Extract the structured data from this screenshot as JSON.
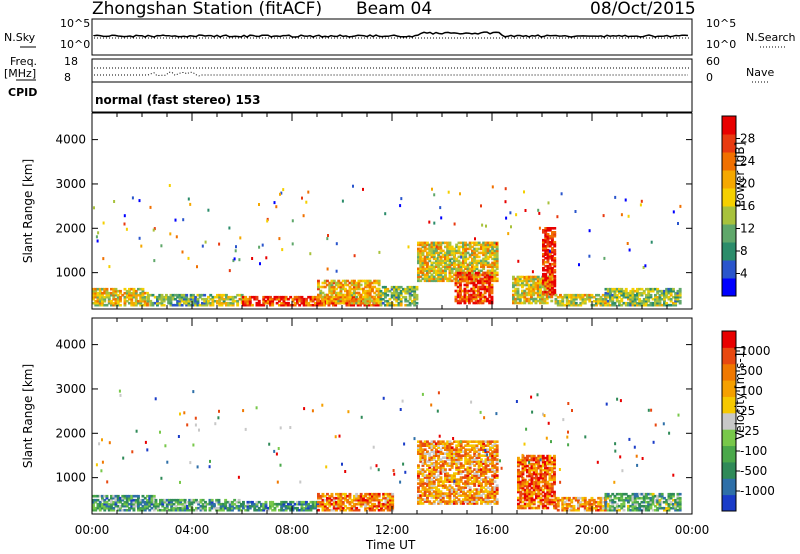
{
  "header": {
    "station": "Zhongshan Station (fitACF)",
    "beam": "Beam 04",
    "date": "08/Oct/2015"
  },
  "status_panel": {
    "nsky_label": "N.Sky",
    "nsearch_label": "N.Search",
    "nsky_ticks": [
      "10^5",
      "10^0"
    ],
    "nsearch_ticks": [
      "10^5",
      "10^0"
    ],
    "freq_label_line1": "Freq.",
    "freq_label_line2": "[MHz]",
    "freq_ticks": [
      "18",
      "8"
    ],
    "nave_label": "Nave",
    "nave_ticks": [
      "60",
      "0"
    ],
    "cpid_label": "CPID",
    "cpid_value": "normal (fast stereo) 153"
  },
  "chart_data": [
    {
      "type": "heatmap",
      "name": "power",
      "ylabel": "Slant Range [km]",
      "xlabel": "Time UT",
      "xlim": [
        0,
        24
      ],
      "ylim": [
        180,
        4600
      ],
      "y_ticks": [
        1000,
        2000,
        3000,
        4000
      ],
      "x_tick_labels": [
        "00:00",
        "04:00",
        "08:00",
        "12:00",
        "16:00",
        "20:00",
        "00:00"
      ],
      "colorbar": {
        "label": "Power [dB]",
        "ticks": [
          "4",
          "8",
          "12",
          "16",
          "20",
          "24",
          "28"
        ],
        "colors": [
          "#0000ff",
          "#2a55cc",
          "#2b8c6a",
          "#5fa76a",
          "#a8c23c",
          "#f5d000",
          "#f5a800",
          "#f07000",
          "#e83a10",
          "#e80000"
        ]
      },
      "regions": [
        {
          "t0": 0.0,
          "t1": 2.2,
          "r0": 250,
          "r1": 650,
          "v": 0.55
        },
        {
          "t0": 2.2,
          "t1": 4.6,
          "r0": 250,
          "r1": 500,
          "v": 0.35
        },
        {
          "t0": 4.6,
          "t1": 6.0,
          "r0": 250,
          "r1": 520,
          "v": 0.5
        },
        {
          "t0": 6.0,
          "t1": 11.5,
          "r0": 250,
          "r1": 450,
          "v": 0.85
        },
        {
          "t0": 9.0,
          "t1": 11.5,
          "r0": 300,
          "r1": 800,
          "v": 0.6
        },
        {
          "t0": 11.5,
          "t1": 13.0,
          "r0": 250,
          "r1": 700,
          "v": 0.4
        },
        {
          "t0": 13.0,
          "t1": 16.2,
          "r0": 800,
          "r1": 1700,
          "v": 0.55
        },
        {
          "t0": 14.5,
          "t1": 16.0,
          "r0": 300,
          "r1": 1000,
          "v": 0.85
        },
        {
          "t0": 16.8,
          "t1": 18.4,
          "r0": 300,
          "r1": 900,
          "v": 0.55
        },
        {
          "t0": 18.0,
          "t1": 18.5,
          "r0": 500,
          "r1": 2000,
          "v": 0.9
        },
        {
          "t0": 18.5,
          "t1": 20.5,
          "r0": 250,
          "r1": 500,
          "v": 0.5
        },
        {
          "t0": 20.5,
          "t1": 23.5,
          "r0": 250,
          "r1": 650,
          "v": 0.4
        }
      ]
    },
    {
      "type": "heatmap",
      "name": "velocity",
      "ylabel": "Slant Range [km]",
      "xlabel": "Time UT",
      "xlim": [
        0,
        24
      ],
      "ylim": [
        180,
        4600
      ],
      "y_ticks": [
        1000,
        2000,
        3000,
        4000
      ],
      "x_tick_labels": [
        "00:00",
        "04:00",
        "08:00",
        "12:00",
        "16:00",
        "20:00",
        "00:00"
      ],
      "colorbar": {
        "label": "Velocity [m s-1]",
        "ticks": [
          "1000",
          "500",
          "100",
          "25",
          "-25",
          "-100",
          "-500",
          "-1000"
        ],
        "colors": [
          "#1a3cc8",
          "#2e6fa8",
          "#2f8a58",
          "#4aa84a",
          "#78c84a",
          "#c8c8c8",
          "#f5c800",
          "#f5a000",
          "#f07800",
          "#e84810",
          "#e80000"
        ]
      },
      "regions": [
        {
          "t0": 0.0,
          "t1": 2.5,
          "r0": 250,
          "r1": 600,
          "v": 0.3
        },
        {
          "t0": 2.5,
          "t1": 6.0,
          "r0": 250,
          "r1": 500,
          "v": 0.3
        },
        {
          "t0": 6.0,
          "t1": 9.0,
          "r0": 250,
          "r1": 450,
          "v": 0.25
        },
        {
          "t0": 9.0,
          "t1": 12.0,
          "r0": 250,
          "r1": 650,
          "v": 0.75
        },
        {
          "t0": 13.0,
          "t1": 16.2,
          "r0": 400,
          "r1": 1800,
          "v": 0.7
        },
        {
          "t0": 17.0,
          "t1": 18.5,
          "r0": 300,
          "r1": 1500,
          "v": 0.8
        },
        {
          "t0": 18.5,
          "t1": 20.5,
          "r0": 250,
          "r1": 550,
          "v": 0.7
        },
        {
          "t0": 20.5,
          "t1": 23.5,
          "r0": 250,
          "r1": 650,
          "v": 0.35
        }
      ]
    }
  ]
}
